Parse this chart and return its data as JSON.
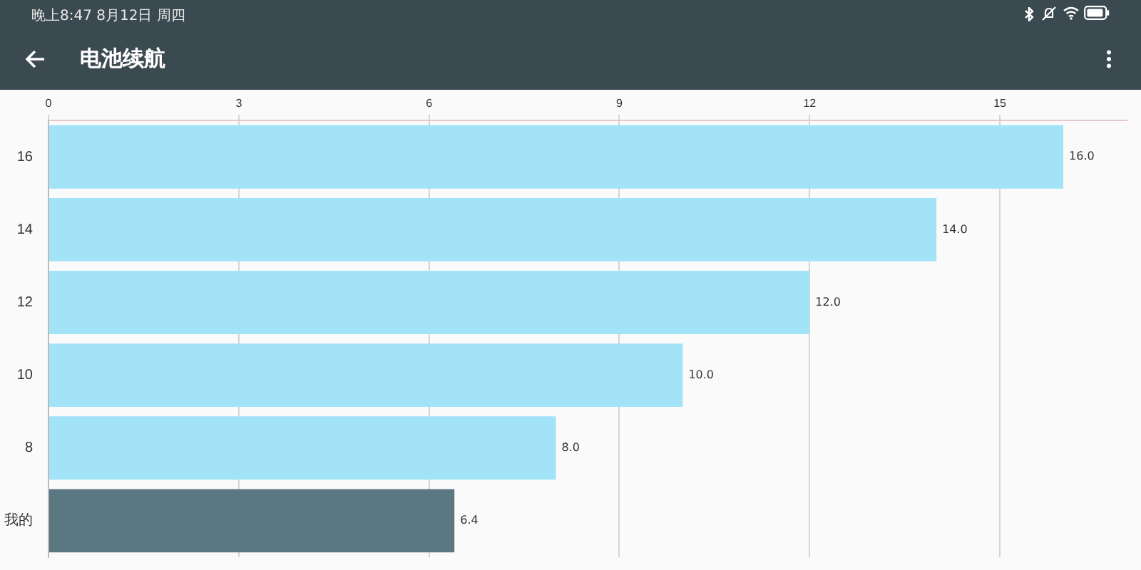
{
  "chart_data": {
    "type": "bar",
    "orientation": "horizontal",
    "title": "电池续航",
    "annotations": [
      "晚上8:47 8月12日 周四"
    ],
    "categories": [
      "16",
      "14",
      "12",
      "10",
      "8",
      "我的"
    ],
    "values": [
      16,
      14,
      12,
      10,
      8,
      6.4
    ],
    "value_labels": [
      "16.0",
      "14.0",
      "12.0",
      "10.0",
      "8.0",
      "6.4"
    ],
    "colors": [
      "#a3e3f8",
      "#a3e3f8",
      "#a3e3f8",
      "#a3e3f8",
      "#a3e3f8",
      "#5b7782"
    ],
    "xlim": [
      0,
      17
    ],
    "xticks": [
      0,
      3,
      6,
      9,
      12,
      15
    ],
    "grid": "x"
  }
}
